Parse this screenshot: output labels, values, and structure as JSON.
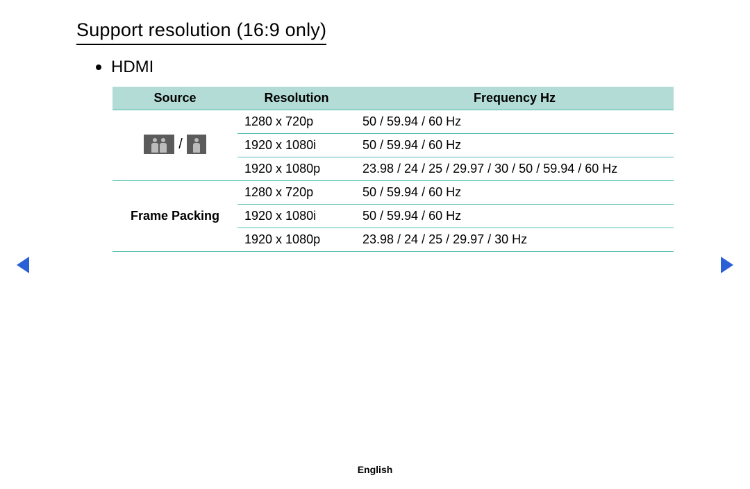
{
  "title": "Support resolution (16:9 only)",
  "subtitle": "HDMI",
  "table": {
    "headers": {
      "source": "Source",
      "resolution": "Resolution",
      "frequency": "Frequency Hz"
    },
    "header_bg": "#b3dcd6",
    "border_color": "#4fbfb2",
    "groups": [
      {
        "source_label_type": "icons",
        "icon_separator": "/",
        "rows": [
          {
            "resolution": "1280 x 720p",
            "frequency": "50 / 59.94 / 60 Hz"
          },
          {
            "resolution": "1920 x 1080i",
            "frequency": "50 / 59.94 / 60 Hz"
          },
          {
            "resolution": "1920 x 1080p",
            "frequency": "23.98 / 24 / 25 / 29.97 / 30 / 50 / 59.94 / 60 Hz"
          }
        ]
      },
      {
        "source_label_type": "text",
        "source_label": "Frame Packing",
        "rows": [
          {
            "resolution": "1280 x 720p",
            "frequency": "50 / 59.94 / 60 Hz"
          },
          {
            "resolution": "1920 x 1080i",
            "frequency": "50 / 59.94 / 60 Hz"
          },
          {
            "resolution": "1920 x 1080p",
            "frequency": "23.98 / 24 / 25 / 29.97 / 30 Hz"
          }
        ]
      }
    ]
  },
  "nav_arrow_color": "#2a5fd6",
  "footer_language": "English"
}
